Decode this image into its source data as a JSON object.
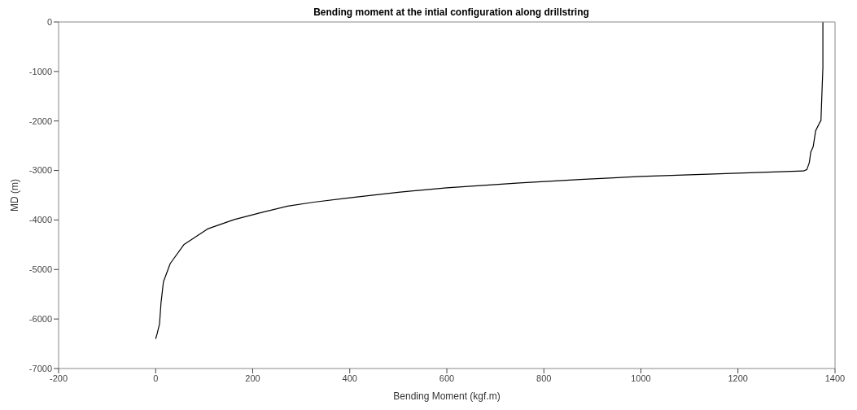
{
  "chart_data": {
    "type": "line",
    "title": "Bending moment at the intial configuration along drillstring",
    "xlabel": "Bending Moment (kgf.m)",
    "ylabel": "MD (m)",
    "x": [
      0,
      3,
      8,
      11,
      16,
      30,
      58,
      107,
      162,
      217,
      272,
      326,
      400,
      500,
      600,
      750,
      875,
      1000,
      1150,
      1335,
      1342,
      1347,
      1350,
      1355,
      1360,
      1368,
      1371,
      1373,
      1375,
      1375
    ],
    "values": [
      -6400,
      -6300,
      -6100,
      -5680,
      -5250,
      -4880,
      -4500,
      -4180,
      -3990,
      -3850,
      -3720,
      -3640,
      -3550,
      -3440,
      -3350,
      -3250,
      -3180,
      -3120,
      -3070,
      -3010,
      -2980,
      -2840,
      -2630,
      -2520,
      -2200,
      -2040,
      -1990,
      -1450,
      -920,
      0
    ],
    "color": "#000000",
    "xlim": [
      -200,
      1400
    ],
    "ylim": [
      -7000,
      0
    ],
    "xticks": [
      -200,
      0,
      200,
      400,
      600,
      800,
      1000,
      1200,
      1400
    ],
    "yticks": [
      -7000,
      -6000,
      -5000,
      -4000,
      -3000,
      -2000,
      -1000,
      0
    ]
  }
}
